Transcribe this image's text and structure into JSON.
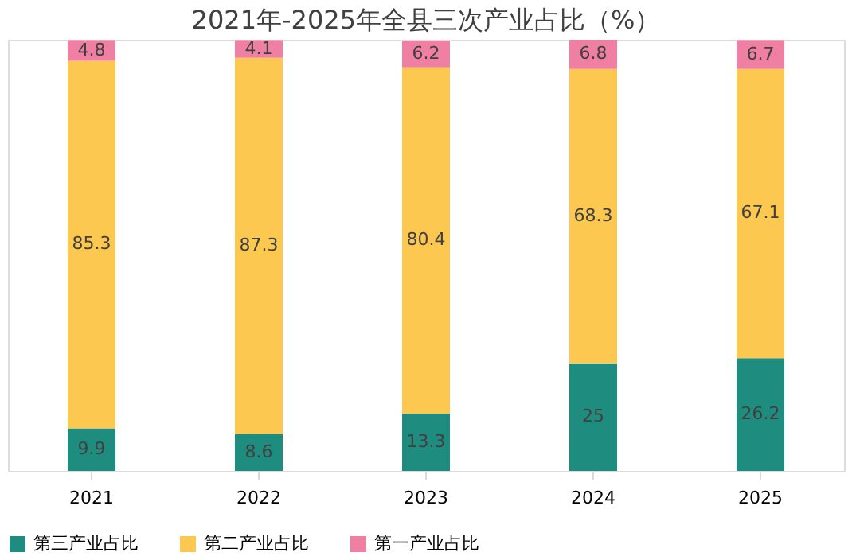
{
  "chart_data": {
    "type": "bar",
    "title": "2021年-2025年全县三次产业占比（%）",
    "categories": [
      "2021",
      "2022",
      "2023",
      "2024",
      "2025"
    ],
    "stacked": true,
    "data_labels": true,
    "grid": false,
    "legend": "bottom",
    "series": [
      {
        "name": "第三产业占比",
        "color": "#1e8c7e",
        "values": [
          9.9,
          8.6,
          13.3,
          25,
          26.2
        ]
      },
      {
        "name": "第二产业占比",
        "color": "#fcc84f",
        "values": [
          85.3,
          87.3,
          80.4,
          68.3,
          67.1
        ]
      },
      {
        "name": "第一产业占比",
        "color": "#f07fa4",
        "values": [
          4.8,
          4.1,
          6.2,
          6.8,
          6.7
        ]
      }
    ]
  }
}
